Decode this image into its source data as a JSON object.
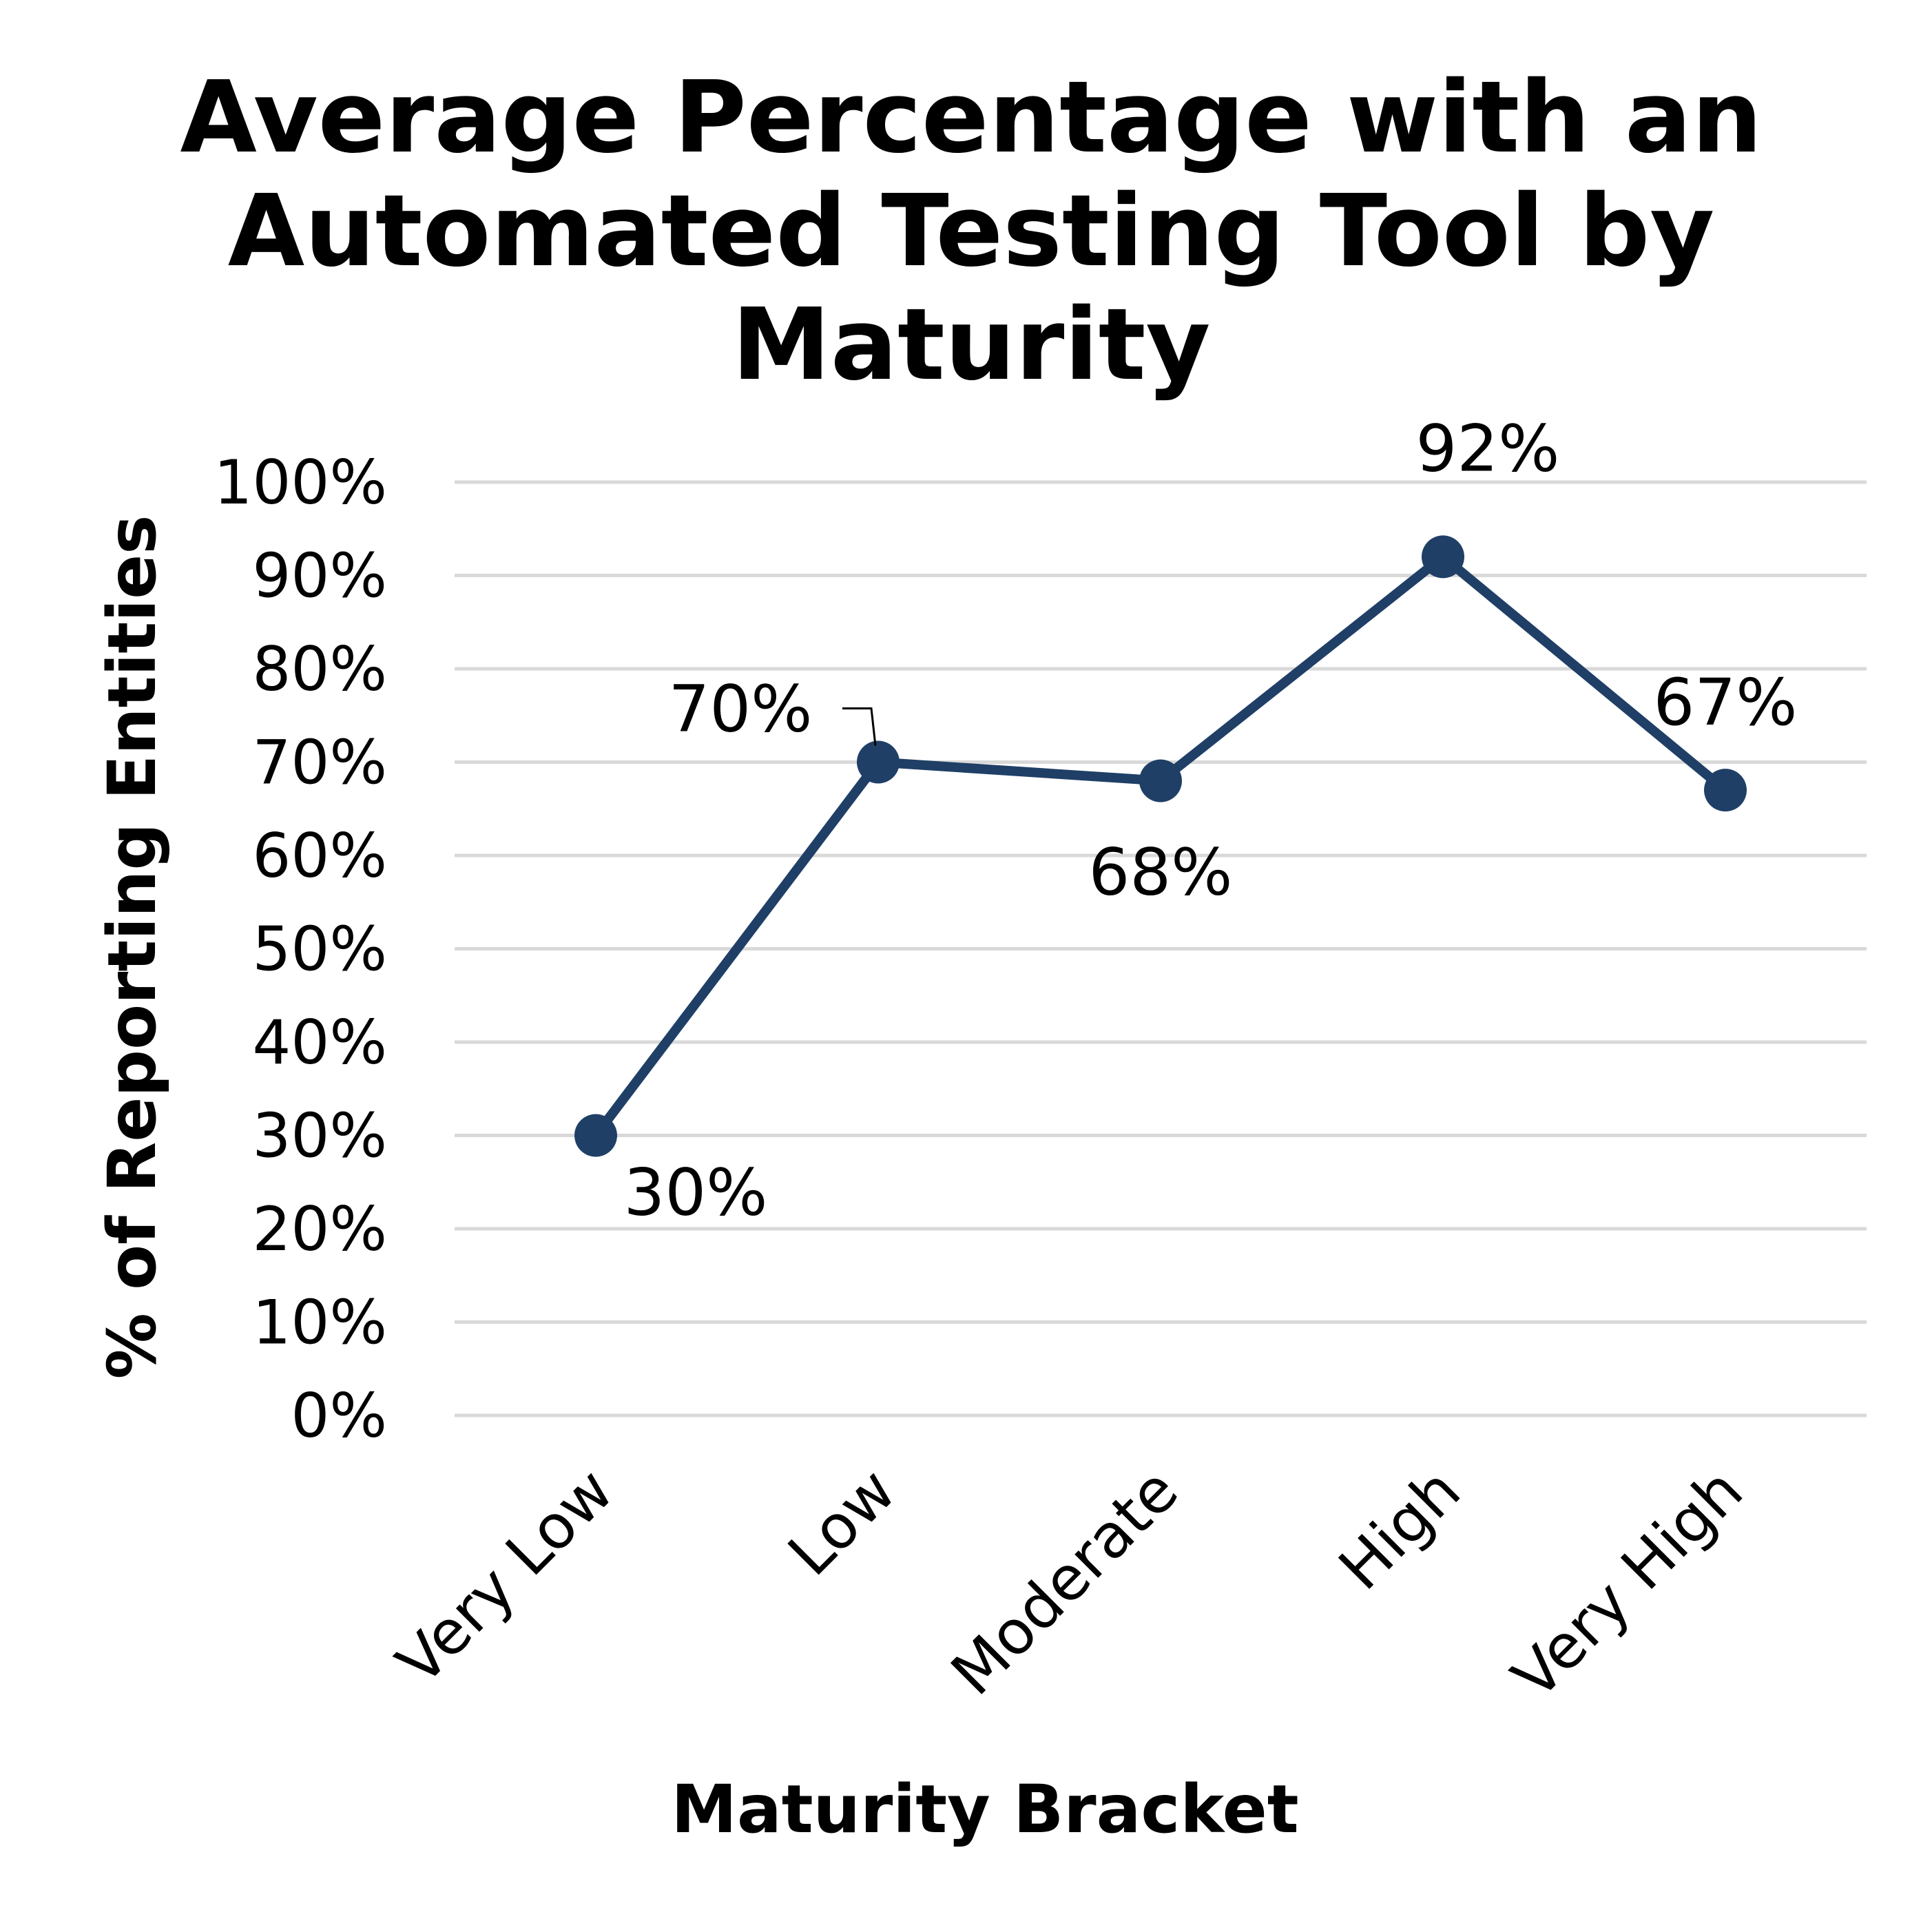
{
  "chart_data": {
    "type": "line",
    "title_lines": [
      "Average Percentage with an",
      "Automated Testing Tool by",
      "Maturity"
    ],
    "xlabel": "Maturity Bracket",
    "ylabel": "% of Reporting Entities",
    "categories": [
      "Very Low",
      "Low",
      "Moderate",
      "High",
      "Very High"
    ],
    "series": [
      {
        "values": [
          0.3,
          0.7,
          0.68,
          0.92,
          0.67
        ]
      }
    ],
    "data_labels": [
      "30%",
      "70%",
      "68%",
      "92%",
      "67%"
    ],
    "ylim": [
      0,
      1
    ],
    "y_ticks": [
      "0%",
      "10%",
      "20%",
      "30%",
      "40%",
      "50%",
      "60%",
      "70%",
      "80%",
      "90%",
      "100%"
    ],
    "grid": true,
    "legend": "none",
    "colors": {
      "series": "#1f3f66",
      "grid": "#d9d9d9"
    }
  }
}
